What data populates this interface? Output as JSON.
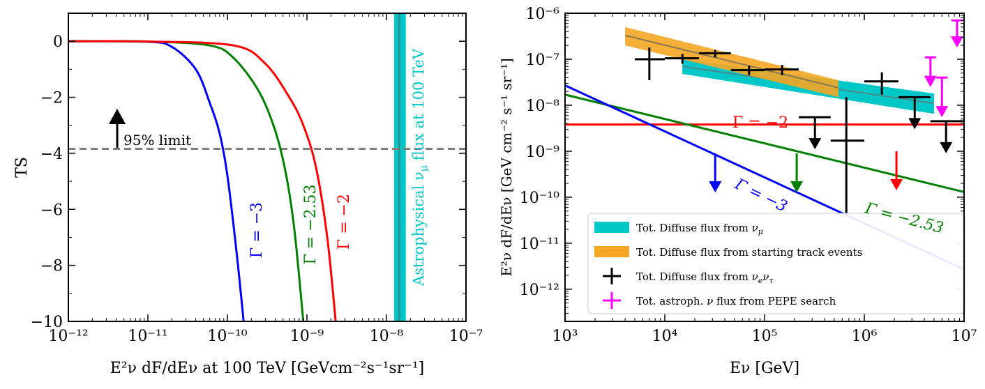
{
  "chart_data": [
    {
      "type": "line",
      "ylabel": "TS",
      "xlabel": "E²ν dF/dEν at 100 TeV [GeVcm⁻²s⁻¹sr⁻¹]",
      "xscale": "log",
      "xlim": [
        1e-12,
        1e-07
      ],
      "ylim": [
        -10,
        1
      ],
      "xticks": [
        "10⁻¹²",
        "10⁻¹¹",
        "10⁻¹⁰",
        "10⁻⁹",
        "10⁻⁸",
        "10⁻⁷"
      ],
      "yticks": [
        "0",
        "−2",
        "−4",
        "−6",
        "−8",
        "−10"
      ],
      "series": [
        {
          "name": "Γ = −3",
          "color": "#0000ff",
          "x": [
            1e-12,
            1e-11,
            2e-11,
            4e-11,
            6e-11,
            8e-11,
            1e-10,
            1.3e-10,
            1.6e-10
          ],
          "y": [
            0,
            -0.02,
            -0.2,
            -1.0,
            -2.2,
            -3.3,
            -4.8,
            -7.5,
            -10
          ]
        },
        {
          "name": "Γ = −2.53",
          "color": "#008000",
          "x": [
            1e-12,
            1e-11,
            6e-11,
            1.2e-10,
            2.5e-10,
            4e-10,
            5.5e-10,
            7e-10,
            9e-10
          ],
          "y": [
            0,
            -0.01,
            -0.15,
            -0.6,
            -1.8,
            -3.2,
            -4.8,
            -6.8,
            -10
          ]
        },
        {
          "name": "Γ = −2",
          "color": "#ff0000",
          "x": [
            1e-12,
            1e-11,
            1.2e-10,
            3e-10,
            6e-10,
            9e-10,
            1.3e-09,
            1.8e-09,
            2.3e-09
          ],
          "y": [
            0,
            -0.01,
            -0.15,
            -0.8,
            -2.0,
            -3.0,
            -4.5,
            -7.0,
            -10
          ]
        }
      ],
      "limit_line": {
        "y": -3.84,
        "label": "95% limit"
      },
      "band": {
        "x": [
          1.25e-08,
          1.75e-08
        ],
        "center": 1.45e-08,
        "label_prefix": "Astrophysical",
        "label_nu": "ν",
        "label_mu": "μ",
        "label_suffix": "flux at 100 TeV"
      }
    },
    {
      "type": "line",
      "xlabel": "Eν [GeV]",
      "ylabel": "E²ν dF/dEν [GeV cm⁻² s⁻¹ sr⁻¹]",
      "xscale": "log",
      "yscale": "log",
      "xlim": [
        1000.0,
        10000000.0
      ],
      "ylim": [
        2e-13,
        1e-06
      ],
      "xticks": [
        "10³",
        "10⁴",
        "10⁵",
        "10⁶",
        "10⁷"
      ],
      "yticks": [
        "10⁻⁶",
        "10⁻⁷",
        "10⁻⁸",
        "10⁻⁹",
        "10⁻¹⁰",
        "10⁻¹¹",
        "10⁻¹²"
      ],
      "lines": [
        {
          "name": "Γ = −2",
          "color": "#ff0000",
          "x": [
            1000.0,
            10000000.0
          ],
          "y": [
            3.8e-09,
            3.8e-09
          ]
        },
        {
          "name": "Γ = −2.53",
          "color": "#008000",
          "x": [
            1000.0,
            10000000.0
          ],
          "y": [
            1.7e-08,
            1.3e-10
          ]
        },
        {
          "name": "Γ = −3",
          "color": "#0000ff",
          "x": [
            1000.0,
            10000000.0
          ],
          "y": [
            2.7e-08,
            2.7e-12
          ]
        }
      ],
      "upper_limits": [
        {
          "color": "#0000ff",
          "x": 32000.0,
          "y": 9e-10
        },
        {
          "color": "#008000",
          "x": 210000.0,
          "y": 9e-10
        },
        {
          "color": "#ff0000",
          "x": 2100000.0,
          "y": 1e-09
        }
      ],
      "numu_band": {
        "x": [
          15000.0,
          5000000.0
        ],
        "center": [
          7e-08,
          1.1e-08
        ],
        "lower": [
          4.8e-08,
          6.5e-09
        ],
        "upper": [
          1e-07,
          1.8e-08
        ]
      },
      "starting_band": {
        "x": [
          4000.0,
          550000.0
        ],
        "center": [
          3.3e-07,
          2.4e-08
        ],
        "lower": [
          2e-07,
          1.5e-08
        ],
        "upper": [
          5e-07,
          3.5e-08
        ]
      },
      "nue_nutau_points": [
        {
          "x": 7000.0,
          "xl": 5000.0,
          "xh": 10000.0,
          "y": 1e-07,
          "yl": 3.5e-08,
          "yh": 1.8e-07
        },
        {
          "x": 15000.0,
          "xl": 10000.0,
          "xh": 22000.0,
          "y": 1.05e-07,
          "yl": 8e-08,
          "yh": 1.3e-07
        },
        {
          "x": 32000.0,
          "xl": 22000.0,
          "xh": 46000.0,
          "y": 1.35e-07,
          "yl": 1.1e-07,
          "yh": 1.6e-07
        },
        {
          "x": 70000.0,
          "xl": 46000.0,
          "xh": 100000.0,
          "y": 5.8e-08,
          "yl": 4.5e-08,
          "yh": 7.2e-08
        },
        {
          "x": 150000.0,
          "xl": 100000.0,
          "xh": 220000.0,
          "y": 6e-08,
          "yl": 4.5e-08,
          "yh": 7.5e-08
        },
        {
          "x": 660000.0,
          "xl": 460000.0,
          "xh": 1000000.0,
          "y": 1.7e-09,
          "yl": 4e-11,
          "yh": 1.5e-08
        },
        {
          "x": 1500000.0,
          "xl": 1000000.0,
          "xh": 2200000.0,
          "y": 3.3e-08,
          "yl": 1.7e-08,
          "yh": 5.2e-08
        }
      ],
      "nue_nutau_limits": [
        {
          "x": 320000.0,
          "xl": 220000.0,
          "xh": 460000.0,
          "y": 5.5e-09
        },
        {
          "x": 3200000.0,
          "xl": 2200000.0,
          "xh": 4600000.0,
          "y": 1.5e-08
        },
        {
          "x": 6600000.0,
          "xl": 4600000.0,
          "xh": 10000000.0,
          "y": 4.5e-09
        }
      ],
      "pepe_limits": [
        {
          "x": 4600000.0,
          "ytop": 1.1e-07,
          "ybot": 2.5e-08
        },
        {
          "x": 6000000.0,
          "ytop": 4e-08,
          "ybot": 5.5e-09
        },
        {
          "x": 8500000.0,
          "ytop": 7e-07,
          "ybot": 1.8e-07
        }
      ],
      "legend": [
        {
          "swatch": "band",
          "color": "#00c8c8",
          "prefix": "Tot. Diffuse flux from ",
          "sym": "ν",
          "sub": "μ",
          "sym2": "",
          "sub2": "",
          "suffix": ""
        },
        {
          "swatch": "band",
          "color": "#f5a623",
          "prefix": "Tot. Diffuse flux from starting track events",
          "sym": "",
          "sub": "",
          "sym2": "",
          "sub2": "",
          "suffix": ""
        },
        {
          "swatch": "cross",
          "color": "#000000",
          "prefix": "Tot. Diffuse flux from ",
          "sym": "ν",
          "sub": "e",
          "sym2": "ν",
          "sub2": "τ",
          "suffix": ""
        },
        {
          "swatch": "cross",
          "color": "#ff00ff",
          "prefix": "Tot. astroph. ",
          "sym": "ν",
          "sub": "",
          "sym2": "",
          "sub2": "",
          "suffix": " flux from PEPE search"
        }
      ],
      "line_labels": {
        "gamma": "Γ",
        "minus2": " = −2",
        "minus253": " = −2.53",
        "minus3": " = −3"
      }
    }
  ]
}
